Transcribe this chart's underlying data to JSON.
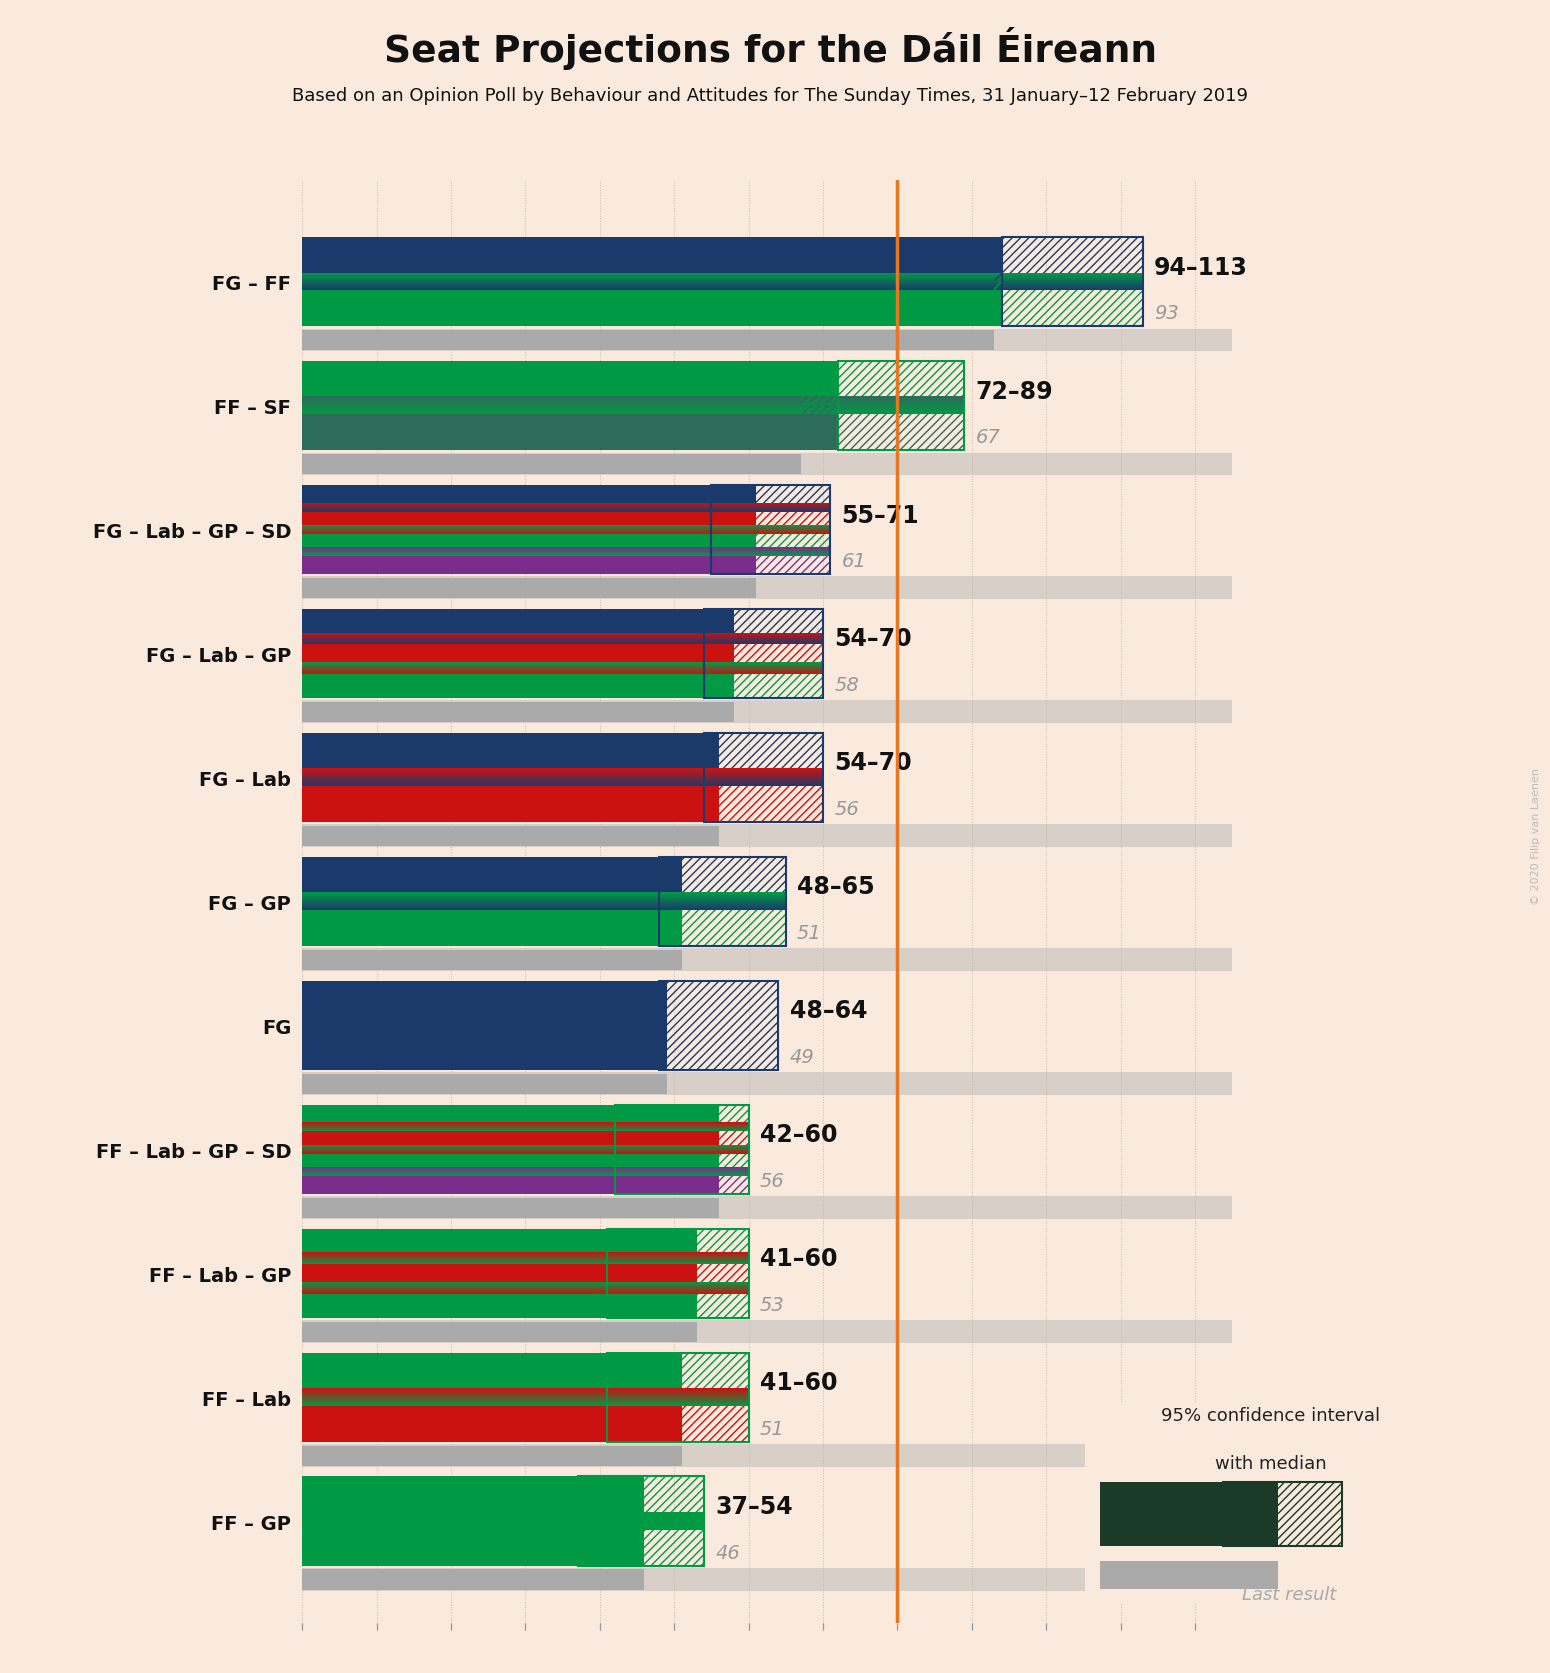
{
  "title": "Seat Projections for the Dáil Éireann",
  "subtitle": "Based on an Opinion Poll by Behaviour and Attitudes for The Sunday Times, 31 January–12 February 2019",
  "watermark": "© 2020 Filip van Laenen",
  "background_color": "#faeade",
  "majority_line": 80,
  "majority_color": "#e87722",
  "xmax": 125,
  "tick_step": 10,
  "coalitions": [
    {
      "label": "FG – FF",
      "range_text": "94–113",
      "median": 93,
      "low": 94,
      "high": 113,
      "last_result": 93,
      "parties": [
        "FG",
        "FF"
      ],
      "colors": [
        "#1a3a6b",
        "#009a44"
      ]
    },
    {
      "label": "FF – SF",
      "range_text": "72–89",
      "median": 67,
      "low": 72,
      "high": 89,
      "last_result": 67,
      "parties": [
        "FF",
        "SF"
      ],
      "colors": [
        "#009a44",
        "#2d6b5a"
      ]
    },
    {
      "label": "FG – Lab – GP – SD",
      "range_text": "55–71",
      "median": 61,
      "low": 55,
      "high": 71,
      "last_result": 61,
      "parties": [
        "FG",
        "Lab",
        "GP",
        "SD"
      ],
      "colors": [
        "#1a3a6b",
        "#cc1111",
        "#009a44",
        "#7b2d8b"
      ]
    },
    {
      "label": "FG – Lab – GP",
      "range_text": "54–70",
      "median": 58,
      "low": 54,
      "high": 70,
      "last_result": 58,
      "parties": [
        "FG",
        "Lab",
        "GP"
      ],
      "colors": [
        "#1a3a6b",
        "#cc1111",
        "#009a44"
      ]
    },
    {
      "label": "FG – Lab",
      "range_text": "54–70",
      "median": 56,
      "low": 54,
      "high": 70,
      "last_result": 56,
      "parties": [
        "FG",
        "Lab"
      ],
      "colors": [
        "#1a3a6b",
        "#cc1111"
      ]
    },
    {
      "label": "FG – GP",
      "range_text": "48–65",
      "median": 51,
      "low": 48,
      "high": 65,
      "last_result": 51,
      "parties": [
        "FG",
        "GP"
      ],
      "colors": [
        "#1a3a6b",
        "#009a44"
      ]
    },
    {
      "label": "FG",
      "range_text": "48–64",
      "median": 49,
      "low": 48,
      "high": 64,
      "last_result": 49,
      "parties": [
        "FG"
      ],
      "colors": [
        "#1a3a6b"
      ]
    },
    {
      "label": "FF – Lab – GP – SD",
      "range_text": "42–60",
      "median": 56,
      "low": 42,
      "high": 60,
      "last_result": 56,
      "parties": [
        "FF",
        "Lab",
        "GP",
        "SD"
      ],
      "colors": [
        "#009a44",
        "#cc1111",
        "#009a44",
        "#7b2d8b"
      ]
    },
    {
      "label": "FF – Lab – GP",
      "range_text": "41–60",
      "median": 53,
      "low": 41,
      "high": 60,
      "last_result": 53,
      "parties": [
        "FF",
        "Lab",
        "GP"
      ],
      "colors": [
        "#009a44",
        "#cc1111",
        "#009a44"
      ]
    },
    {
      "label": "FF – Lab",
      "range_text": "41–60",
      "median": 51,
      "low": 41,
      "high": 60,
      "last_result": 51,
      "parties": [
        "FF",
        "Lab"
      ],
      "colors": [
        "#009a44",
        "#cc1111"
      ]
    },
    {
      "label": "FF – GP",
      "range_text": "37–54",
      "median": 46,
      "low": 37,
      "high": 54,
      "last_result": 46,
      "parties": [
        "FF",
        "GP"
      ],
      "colors": [
        "#009a44",
        "#009a44"
      ]
    }
  ]
}
